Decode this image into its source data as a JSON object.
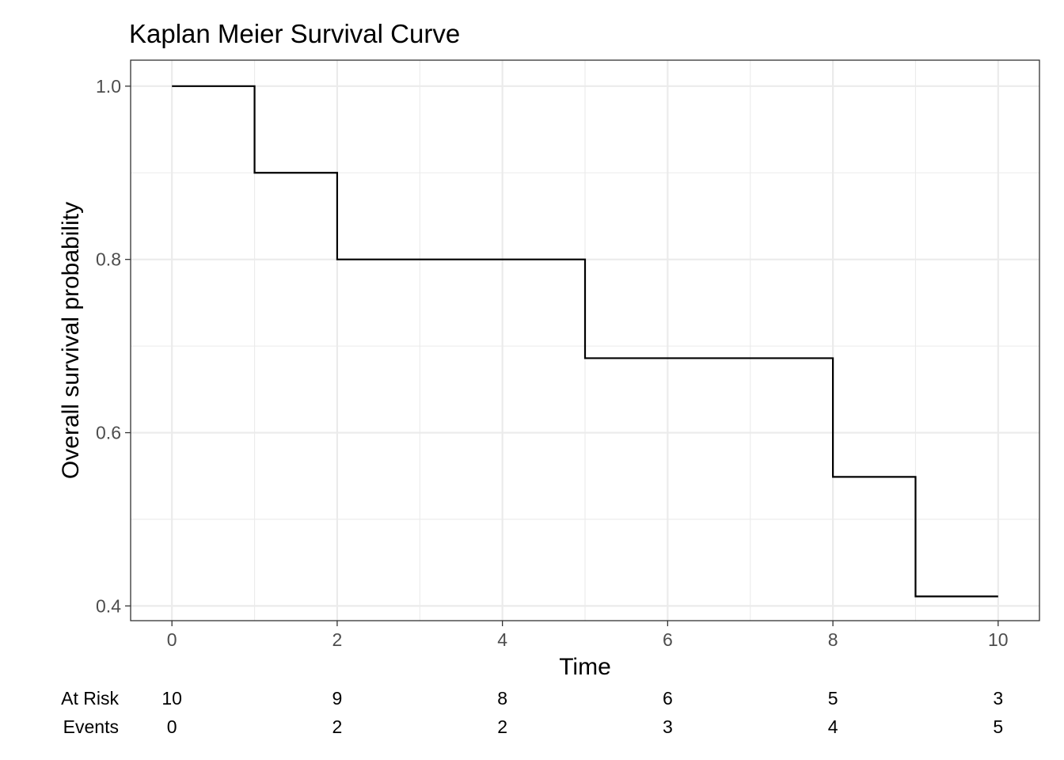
{
  "chart_data": {
    "type": "line",
    "title": "Kaplan Meier Survival Curve",
    "xlabel": "Time",
    "ylabel": "Overall survival probability",
    "xlim": [
      -0.5,
      10.5
    ],
    "ylim": [
      0.383,
      1.03
    ],
    "x_ticks": [
      0,
      2,
      4,
      6,
      8,
      10
    ],
    "y_ticks": [
      0.4,
      0.6,
      0.8,
      1.0
    ],
    "y_tick_labels": [
      "0.4",
      "0.6",
      "0.8",
      "1.0"
    ],
    "grid": true,
    "step": true,
    "series": [
      {
        "x": [
          0,
          1,
          2,
          5,
          8,
          9,
          10
        ],
        "y": [
          1.0,
          0.9,
          0.8,
          0.686,
          0.549,
          0.411,
          0.411
        ]
      }
    ],
    "risk_table": {
      "times": [
        0,
        2,
        4,
        6,
        8,
        10
      ],
      "rows": [
        {
          "label": "At Risk",
          "values": [
            "10",
            "9",
            "8",
            "6",
            "5",
            "3"
          ]
        },
        {
          "label": "Events",
          "values": [
            "0",
            "2",
            "2",
            "3",
            "4",
            "5"
          ]
        }
      ]
    }
  }
}
